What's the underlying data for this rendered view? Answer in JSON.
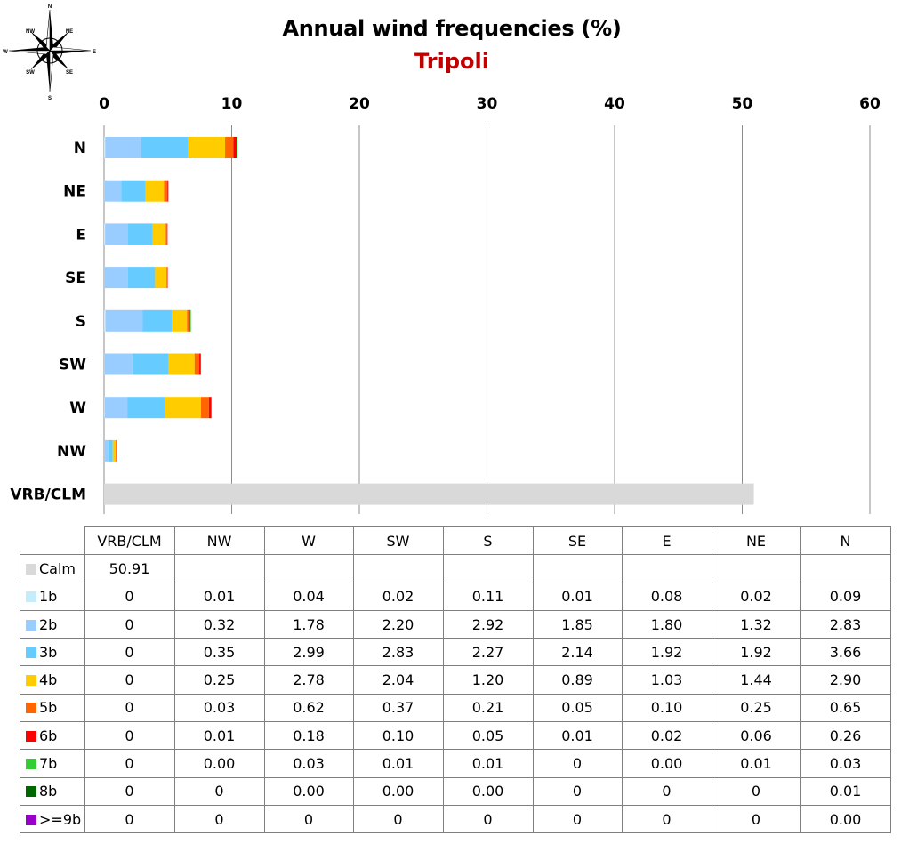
{
  "title": "Annual wind frequencies (%)",
  "subtitle": "Tripoli",
  "compass": {
    "icon": "compass-rose-icon",
    "labels": {
      "n": "N",
      "ne": "NE",
      "e": "E",
      "se": "SE",
      "s": "S",
      "sw": "SW",
      "w": "W",
      "nw": "NW"
    }
  },
  "chart_data": {
    "type": "bar",
    "orientation": "horizontal",
    "stacked": true,
    "title": "Annual wind frequencies (%)",
    "subtitle": "Tripoli",
    "categories": [
      "N",
      "NE",
      "E",
      "SE",
      "S",
      "SW",
      "W",
      "NW",
      "VRB/CLM"
    ],
    "x_ticks": [
      0,
      10,
      20,
      30,
      40,
      50,
      60
    ],
    "xlim": [
      0,
      60
    ],
    "x_axis_position": "top",
    "grid": true,
    "series": [
      {
        "name": "Calm",
        "color": "#d9d9d9",
        "values": [
          0,
          0,
          0,
          0,
          0,
          0,
          0,
          0,
          50.91
        ]
      },
      {
        "name": "1b",
        "color": "#c5ecfb",
        "values": [
          0.09,
          0.02,
          0.08,
          0.01,
          0.11,
          0.02,
          0.04,
          0.01,
          0
        ]
      },
      {
        "name": "2b",
        "color": "#99ccff",
        "values": [
          2.83,
          1.32,
          1.8,
          1.85,
          2.92,
          2.2,
          1.78,
          0.32,
          0
        ]
      },
      {
        "name": "3b",
        "color": "#66ccff",
        "values": [
          3.66,
          1.92,
          1.92,
          2.14,
          2.27,
          2.83,
          2.99,
          0.35,
          0
        ]
      },
      {
        "name": "4b",
        "color": "#ffcc00",
        "values": [
          2.9,
          1.44,
          1.03,
          0.89,
          1.2,
          2.04,
          2.78,
          0.25,
          0
        ]
      },
      {
        "name": "5b",
        "color": "#ff6600",
        "values": [
          0.65,
          0.25,
          0.1,
          0.05,
          0.21,
          0.37,
          0.62,
          0.03,
          0
        ]
      },
      {
        "name": "6b",
        "color": "#ff0000",
        "values": [
          0.26,
          0.06,
          0.02,
          0.01,
          0.05,
          0.1,
          0.18,
          0.01,
          0
        ]
      },
      {
        "name": "7b",
        "color": "#33cc33",
        "values": [
          0.03,
          0.01,
          0.0,
          0,
          0.01,
          0.01,
          0.03,
          0.0,
          0
        ]
      },
      {
        "name": "8b",
        "color": "#006600",
        "values": [
          0.01,
          0,
          0,
          0,
          0.0,
          0.0,
          0.0,
          0,
          0
        ]
      },
      {
        "name": ">=9b",
        "color": "#9900cc",
        "values": [
          0.0,
          0,
          0,
          0,
          0,
          0,
          0,
          0,
          0
        ]
      }
    ]
  },
  "table": {
    "columns": [
      "VRB/CLM",
      "NW",
      "W",
      "SW",
      "S",
      "SE",
      "E",
      "NE",
      "N"
    ],
    "rows": [
      {
        "label": "Calm",
        "color": "#d9d9d9",
        "cells": [
          "50.91",
          "",
          "",
          "",
          "",
          "",
          "",
          "",
          ""
        ]
      },
      {
        "label": "1b",
        "color": "#c5ecfb",
        "cells": [
          "0",
          "0.01",
          "0.04",
          "0.02",
          "0.11",
          "0.01",
          "0.08",
          "0.02",
          "0.09"
        ]
      },
      {
        "label": "2b",
        "color": "#99ccff",
        "cells": [
          "0",
          "0.32",
          "1.78",
          "2.20",
          "2.92",
          "1.85",
          "1.80",
          "1.32",
          "2.83"
        ]
      },
      {
        "label": "3b",
        "color": "#66ccff",
        "cells": [
          "0",
          "0.35",
          "2.99",
          "2.83",
          "2.27",
          "2.14",
          "1.92",
          "1.92",
          "3.66"
        ]
      },
      {
        "label": "4b",
        "color": "#ffcc00",
        "cells": [
          "0",
          "0.25",
          "2.78",
          "2.04",
          "1.20",
          "0.89",
          "1.03",
          "1.44",
          "2.90"
        ]
      },
      {
        "label": "5b",
        "color": "#ff6600",
        "cells": [
          "0",
          "0.03",
          "0.62",
          "0.37",
          "0.21",
          "0.05",
          "0.10",
          "0.25",
          "0.65"
        ]
      },
      {
        "label": "6b",
        "color": "#ff0000",
        "cells": [
          "0",
          "0.01",
          "0.18",
          "0.10",
          "0.05",
          "0.01",
          "0.02",
          "0.06",
          "0.26"
        ]
      },
      {
        "label": "7b",
        "color": "#33cc33",
        "cells": [
          "0",
          "0.00",
          "0.03",
          "0.01",
          "0.01",
          "0",
          "0.00",
          "0.01",
          "0.03"
        ]
      },
      {
        "label": "8b",
        "color": "#006600",
        "cells": [
          "0",
          "0",
          "0.00",
          "0.00",
          "0.00",
          "0",
          "0",
          "0",
          "0.01"
        ]
      },
      {
        "label": ">=9b",
        "color": "#9900cc",
        "cells": [
          "0",
          "0",
          "0",
          "0",
          "0",
          "0",
          "0",
          "0",
          "0.00"
        ]
      }
    ]
  }
}
